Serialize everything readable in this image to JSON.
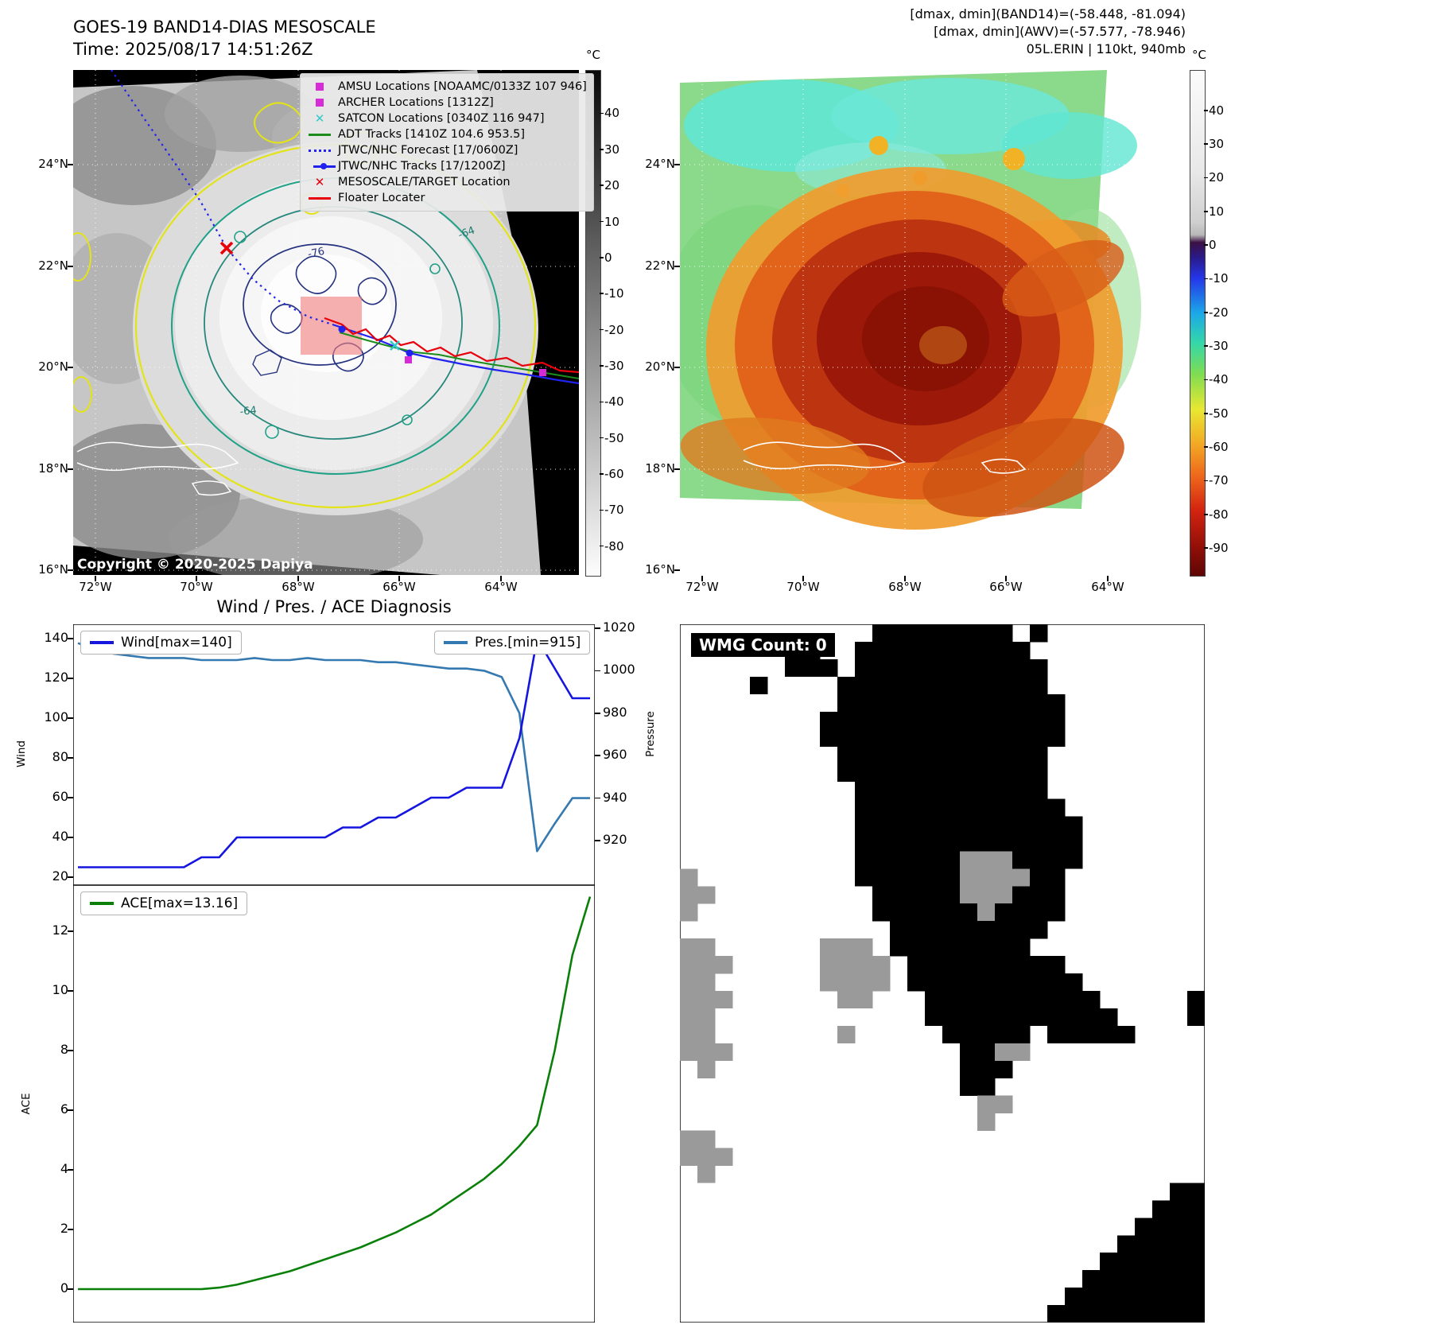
{
  "band14": {
    "title": "GOES-19 BAND14-DIAS MESOSCALE",
    "time_line": "Time: 2025/08/17 14:51:26Z",
    "copyright": "Copyright © 2020-2025 Dapiya",
    "legend": [
      {
        "marker": "square",
        "color": "#d62bd6",
        "label": "AMSU Locations [NOAAMC/0133Z 107 946]"
      },
      {
        "marker": "square",
        "color": "#d62bd6",
        "label": "ARCHER Locations [1312Z]"
      },
      {
        "marker": "x",
        "color": "#35c8c8",
        "label": "SATCON Locations [0340Z 116 947]"
      },
      {
        "marker": "line",
        "color": "#1c8c1c",
        "label": "ADT Tracks [1410Z 104.6 953.5]"
      },
      {
        "marker": "dotted-line",
        "color": "#2222ee",
        "label": "JTWC/NHC Forecast [17/0600Z]"
      },
      {
        "marker": "line-dot",
        "color": "#2222ee",
        "label": "JTWC/NHC Tracks [17/1200Z]"
      },
      {
        "marker": "x",
        "color": "#e8000b",
        "label": "MESOSCALE/TARGET Location"
      },
      {
        "marker": "line",
        "color": "#e8000b",
        "label": "Floater Locater"
      }
    ],
    "colorbar": {
      "unit": "°C",
      "ticks": [
        40,
        30,
        20,
        10,
        0,
        -10,
        -20,
        -30,
        -40,
        -50,
        -60,
        -70,
        -80
      ]
    },
    "contour_labels": [
      "-64",
      "-76",
      "-64"
    ]
  },
  "awv": {
    "header_lines": [
      "[dmax, dmin](BAND14)=(-58.448, -81.094)",
      "[dmax, dmin](AWV)=(-57.577, -78.946)",
      "05L.ERIN | 110kt, 940mb"
    ],
    "colorbar": {
      "unit": "°C",
      "ticks": [
        40,
        30,
        20,
        10,
        0,
        -10,
        -20,
        -30,
        -40,
        -50,
        -60,
        -70,
        -80,
        -90
      ]
    }
  },
  "geo_axes": {
    "lat_ticks": [
      "24°N",
      "22°N",
      "20°N",
      "18°N",
      "16°N"
    ],
    "lon_ticks": [
      "72°W",
      "70°W",
      "68°W",
      "66°W",
      "64°W"
    ]
  },
  "diagnosis_title": "Wind / Pres. / ACE Diagnosis",
  "wmg": {
    "count_label": "WMG Count: 0"
  },
  "chart_data": [
    {
      "type": "line",
      "panel": "wind-pressure",
      "title": "Wind / Pres. / ACE Diagnosis",
      "series": [
        {
          "name": "Wind[max=140]",
          "axis": "left",
          "color": "#1515e0",
          "values": [
            25,
            25,
            25,
            25,
            25,
            25,
            25,
            30,
            30,
            40,
            40,
            40,
            40,
            40,
            40,
            45,
            45,
            50,
            50,
            55,
            60,
            60,
            65,
            65,
            65,
            90,
            140,
            125,
            110,
            110
          ]
        },
        {
          "name": "Pres.[min=915]",
          "axis": "right",
          "color": "#3579b1",
          "values": [
            1013,
            1010,
            1008,
            1007,
            1006,
            1006,
            1006,
            1005,
            1005,
            1005,
            1006,
            1005,
            1005,
            1006,
            1005,
            1005,
            1005,
            1004,
            1004,
            1003,
            1002,
            1001,
            1001,
            1000,
            997,
            980,
            915,
            928,
            940,
            940
          ]
        }
      ],
      "left_axis": {
        "label": "Wind",
        "ticks": [
          20,
          40,
          60,
          80,
          100,
          120,
          140
        ]
      },
      "right_axis": {
        "label": "Pressure",
        "ticks": [
          920,
          940,
          960,
          980,
          1000,
          1020
        ]
      }
    },
    {
      "type": "line",
      "panel": "ace",
      "series": [
        {
          "name": "ACE[max=13.16]",
          "axis": "left",
          "color": "#0a800a",
          "values": [
            0,
            0,
            0,
            0,
            0,
            0,
            0,
            0,
            0.05,
            0.15,
            0.3,
            0.45,
            0.6,
            0.8,
            1.0,
            1.2,
            1.4,
            1.65,
            1.9,
            2.2,
            2.5,
            2.9,
            3.3,
            3.7,
            4.2,
            4.8,
            5.5,
            8.0,
            11.2,
            13.16
          ]
        }
      ],
      "left_axis": {
        "label": "ACE",
        "ticks": [
          0,
          2,
          4,
          6,
          8,
          10,
          12
        ]
      }
    },
    {
      "type": "heatmap",
      "panel": "wmg",
      "label": "WMG Count: 0",
      "colors": {
        "#": "#000000",
        "g": "#9a9a9a",
        ".": "#ffffff"
      },
      "rows": [
        "...........########.#.........",
        "......##..##########..........",
        "......###.###########.........",
        "....#....############.........",
        ".........#############........",
        "........##############........",
        "........##############........",
        ".........############.........",
        ".........############.........",
        "..........###########.........",
        "..........############........",
        "..........#############.......",
        "..........#############.......",
        "..........######ggg####.......",
        "g.........######gggg##........",
        "gg.........#####ggg###........",
        "g..........######g####........",
        "............#########.........",
        "gg......ggg.########..........",
        "ggg.....gggg.#########........",
        "gg......gggg.##########.......",
        "ggg......gg...##########.....#",
        "gg............###########....#",
        "gg.......g.....#####.#####....",
        "ggg.............##gg..........",
        ".g..............###...........",
        "................##............",
        ".................gg...........",
        ".................g............",
        "gg............................",
        "ggg...........................",
        ".g............................",
        "............................##",
        "...........................###",
        "..........................####",
        ".........................#####",
        "........................######",
        ".......................#######",
        "......................########",
        ".....................#########"
      ]
    }
  ]
}
